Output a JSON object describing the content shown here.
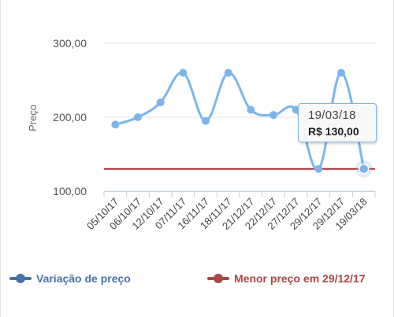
{
  "chart_data": {
    "type": "line",
    "ylabel": "Preço",
    "ylim": [
      100,
      300
    ],
    "y_ticks": [
      "100,00",
      "200,00",
      "300,00"
    ],
    "y_tick_values": [
      100,
      200,
      300
    ],
    "categories": [
      "05/10/17",
      "06/10/17",
      "12/10/17",
      "07/11/17",
      "16/11/17",
      "18/11/17",
      "21/12/17",
      "22/12/17",
      "27/12/17",
      "29/12/17",
      "29/12/17",
      "19/03/18"
    ],
    "series": [
      {
        "name": "Variação de preço",
        "values": [
          190,
          200,
          220,
          260,
          195,
          260,
          210,
          203,
          210,
          130,
          260,
          130
        ],
        "color": "#7cb5ec",
        "legend_color": "#4572a7"
      },
      {
        "name": "Menor preço em 29/12/17",
        "values": [
          130,
          130,
          130,
          130,
          130,
          130,
          130,
          130,
          130,
          130,
          130,
          130
        ],
        "color": "#aa2c2c",
        "legend_color": "#aa4643"
      }
    ],
    "tooltip": {
      "date": "19/03/18",
      "price": "R$ 130,00"
    },
    "grid": true,
    "legend_position": "bottom"
  }
}
